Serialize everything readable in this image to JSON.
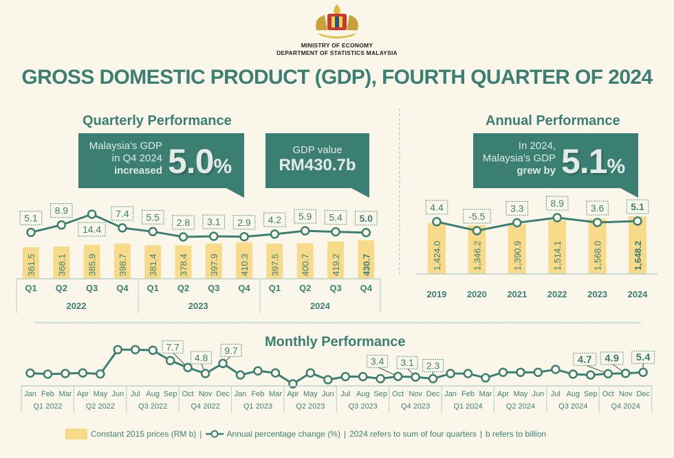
{
  "header": {
    "ministry": "MINISTRY OF ECONOMY",
    "department": "DEPARTMENT OF STATISTICS MALAYSIA",
    "title": "GROSS DOMESTIC PRODUCT (GDP), FOURTH QUARTER OF 2024",
    "logo": "malaysia-coat-of-arms"
  },
  "colors": {
    "accent": "#3b7f73",
    "bar": "#f7db8a",
    "background": "#faf7ea",
    "axis": "#b9d3c9"
  },
  "quarterly": {
    "heading": "Quarterly Performance",
    "callout_growth": {
      "line1": "Malaysia's GDP",
      "line2": "in Q4 2024",
      "line3": "increased",
      "value": "5.0",
      "unit": "%"
    },
    "callout_value": {
      "label": "GDP value",
      "value": "RM430.7b"
    }
  },
  "annual": {
    "heading": "Annual Performance",
    "callout": {
      "line1": "In 2024,",
      "line2": "Malaysia's GDP",
      "line3": "grew by",
      "value": "5.1",
      "unit": "%"
    }
  },
  "monthly": {
    "heading": "Monthly Performance"
  },
  "legend": {
    "bar_label": "Constant 2015 prices (RM b)",
    "line_label": "Annual percentage change (%)",
    "note1": "2024 refers to sum of four quarters",
    "note2": "b refers to billion",
    "separator": "|"
  },
  "chart_data": [
    {
      "type": "bar",
      "name": "quarterly",
      "categories": [
        "Q1",
        "Q2",
        "Q3",
        "Q4",
        "Q1",
        "Q2",
        "Q3",
        "Q4",
        "Q1",
        "Q2",
        "Q3",
        "Q4"
      ],
      "groups": [
        "2022",
        "2023",
        "2024"
      ],
      "bar_labels": [
        "361.5",
        "368.1",
        "385.9",
        "398.7",
        "381.4",
        "378.4",
        "397.9",
        "410.3",
        "397.5",
        "400.7",
        "419.2",
        "430.7"
      ],
      "line_labels": [
        "5.1",
        "8.9",
        "14.4",
        "7.4",
        "5.5",
        "2.8",
        "3.1",
        "2.9",
        "4.2",
        "5.9",
        "5.4",
        "5.0"
      ],
      "series": [
        {
          "name": "Constant 2015 prices (RM b)",
          "type": "bar",
          "values": [
            361.5,
            368.1,
            385.9,
            398.7,
            381.4,
            378.4,
            397.9,
            410.3,
            397.5,
            400.7,
            419.2,
            430.7
          ]
        },
        {
          "name": "Annual percentage change (%)",
          "type": "line",
          "values": [
            5.1,
            8.9,
            14.4,
            7.4,
            5.5,
            2.8,
            3.1,
            2.9,
            4.2,
            5.9,
            5.4,
            5.0
          ]
        }
      ]
    },
    {
      "type": "bar",
      "name": "annual",
      "categories": [
        "2019",
        "2020",
        "2021",
        "2022",
        "2023",
        "2024"
      ],
      "bar_labels": [
        "1,424.0",
        "1,346.2",
        "1,390.9",
        "1,514.1",
        "1,568.0",
        "1,648.2"
      ],
      "line_labels": [
        "4.4",
        "-5.5",
        "3.3",
        "8.9",
        "3.6",
        "5.1"
      ],
      "series": [
        {
          "name": "Constant 2015 prices (RM b)",
          "type": "bar",
          "values": [
            1424.0,
            1346.2,
            1390.9,
            1514.1,
            1568.0,
            1648.2
          ]
        },
        {
          "name": "Annual percentage change (%)",
          "type": "line",
          "values": [
            4.4,
            -5.5,
            3.3,
            8.9,
            3.6,
            5.1
          ]
        }
      ]
    },
    {
      "type": "line",
      "name": "monthly",
      "months": [
        "Jan",
        "Feb",
        "Mar",
        "Apr",
        "May",
        "Jun",
        "Jul",
        "Aug",
        "Sep",
        "Oct",
        "Nov",
        "Dec",
        "Jan",
        "Feb",
        "Mar",
        "Apr",
        "May",
        "Jun",
        "Jul",
        "Aug",
        "Sep",
        "Oct",
        "Nov",
        "Dec",
        "Jan",
        "Feb",
        "Mar",
        "Apr",
        "May",
        "Jun",
        "Jul",
        "Aug",
        "Sep",
        "Oct",
        "Nov",
        "Dec"
      ],
      "quarters": [
        "Q1 2022",
        "Q2 2022",
        "Q3 2022",
        "Q4 2022",
        "Q1 2023",
        "Q2 2023",
        "Q3 2023",
        "Q4 2023",
        "Q1 2024",
        "Q2 2024",
        "Q3 2024",
        "Q4 2024"
      ],
      "series": [
        {
          "name": "Annual percentage change (%)",
          "values": [
            5.0,
            4.5,
            4.8,
            5.1,
            4.6,
            16.4,
            16.4,
            16.1,
            11.1,
            7.7,
            4.8,
            9.7,
            4.1,
            6.1,
            5.1,
            -0.2,
            5.1,
            1.8,
            3.3,
            3.3,
            2.3,
            3.4,
            3.1,
            2.3,
            4.8,
            4.8,
            2.7,
            5.4,
            5.4,
            5.4,
            6.8,
            4.5,
            4.1,
            4.7,
            4.9,
            5.4
          ]
        }
      ],
      "point_labels": {
        "9": "7.7",
        "10": "4.8",
        "11": "9.7",
        "21": "3.4",
        "22": "3.1",
        "23": "2.3",
        "33": "4.7",
        "34": "4.9",
        "35": "5.4"
      }
    }
  ]
}
